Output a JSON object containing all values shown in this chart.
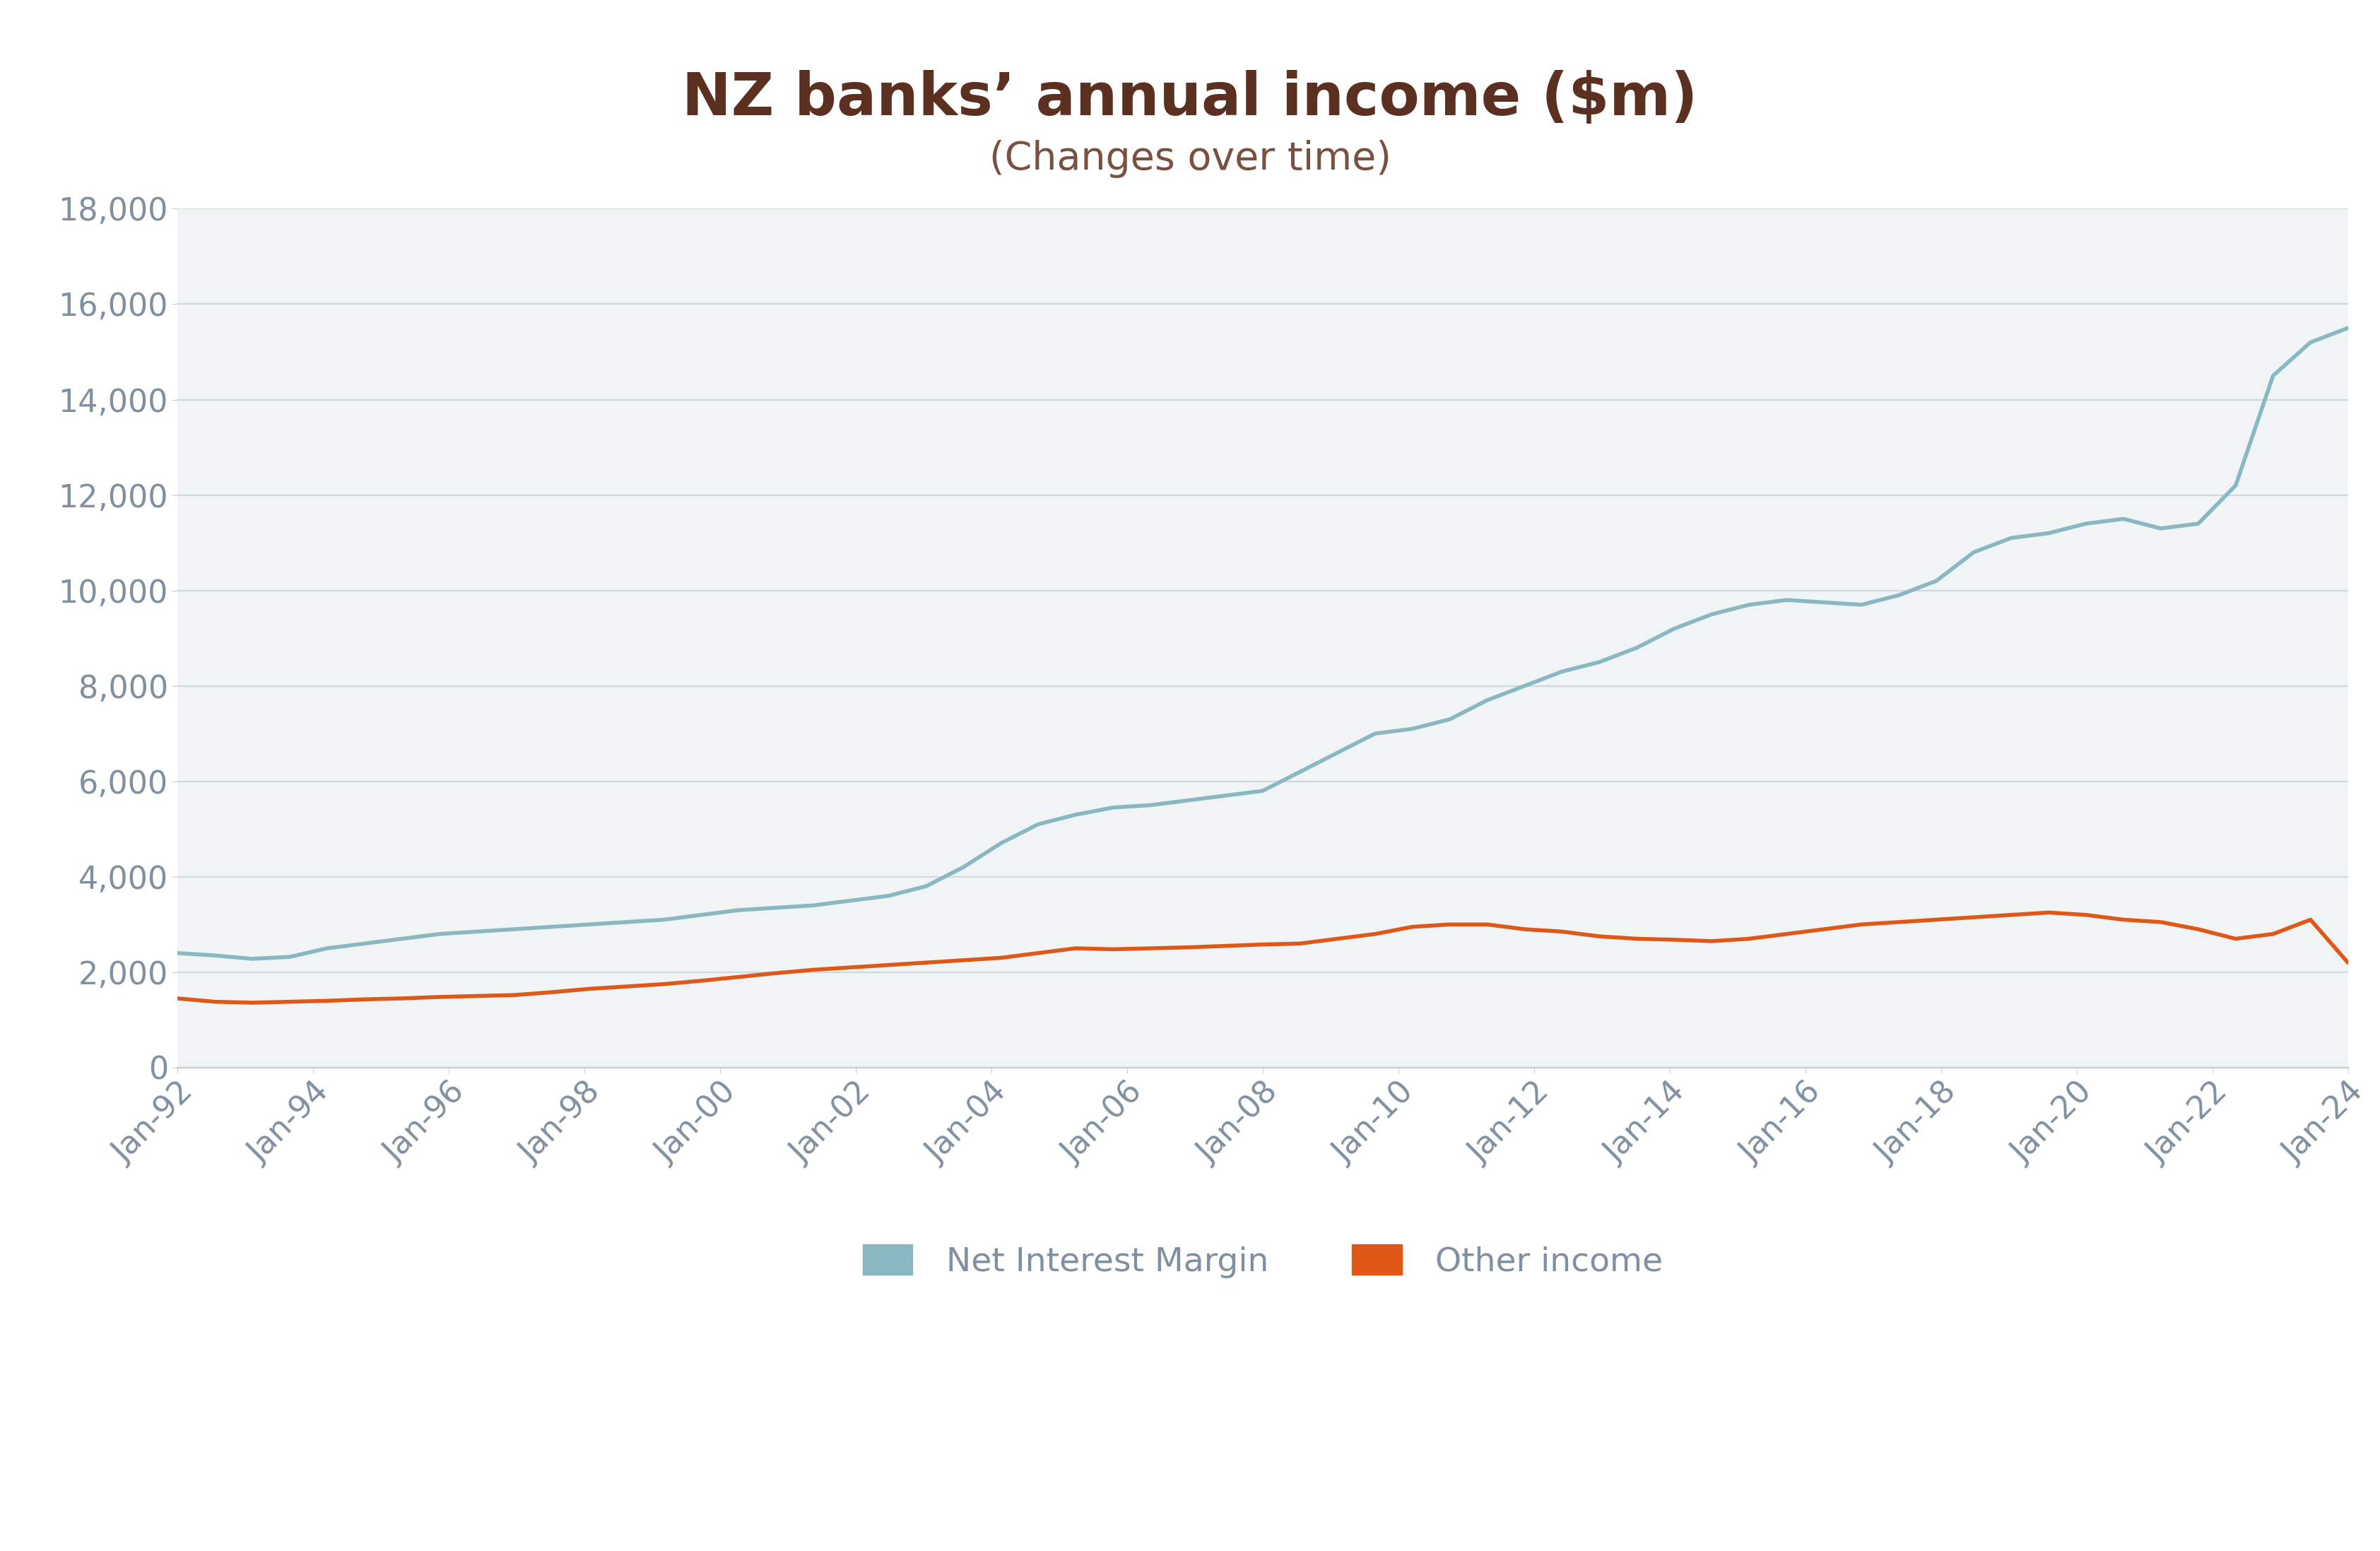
{
  "title": "NZ banks’ annual income ($m)",
  "subtitle": "(Changes over time)",
  "bg_color": "#ffffff",
  "plot_bg_color": "#f0f4f5",
  "title_color": "#5c3020",
  "subtitle_color": "#7a5040",
  "grid_color": "#d0d8dc",
  "tick_color": "#8090a0",
  "axis_color": "#c0ccd0",
  "line_nim_color": "#8ab8c2",
  "line_other_color": "#e05818",
  "legend_nim": "Net Interest Margin",
  "legend_other": "Other income",
  "ylim": [
    0,
    18000
  ],
  "yticks": [
    0,
    2000,
    4000,
    6000,
    8000,
    10000,
    12000,
    14000,
    16000,
    18000
  ],
  "xtick_labels": [
    "Jan-92",
    "Jan-94",
    "Jan-96",
    "Jan-98",
    "Jan-00",
    "Jan-02",
    "Jan-04",
    "Jan-06",
    "Jan-08",
    "Jan-10",
    "Jan-12",
    "Jan-14",
    "Jan-16",
    "Jan-18",
    "Jan-20",
    "Jan-22",
    "Jan-24"
  ],
  "nim_data": [
    2400,
    2350,
    2280,
    2320,
    2500,
    2600,
    2700,
    2800,
    2850,
    2900,
    2950,
    3000,
    3050,
    3100,
    3200,
    3300,
    3350,
    3400,
    3500,
    3600,
    3800,
    4200,
    4700,
    5100,
    5300,
    5450,
    5500,
    5600,
    5700,
    5800,
    6200,
    6600,
    7000,
    7100,
    7300,
    7700,
    8000,
    8300,
    8500,
    8800,
    9200,
    9500,
    9700,
    9800,
    9750,
    9700,
    9900,
    10200,
    10800,
    11100,
    11200,
    11400,
    11500,
    11300,
    11400,
    12200,
    14500,
    15200,
    15500
  ],
  "other_data": [
    1450,
    1380,
    1360,
    1380,
    1400,
    1430,
    1450,
    1480,
    1500,
    1520,
    1580,
    1650,
    1700,
    1750,
    1820,
    1900,
    1980,
    2050,
    2100,
    2150,
    2200,
    2250,
    2300,
    2400,
    2500,
    2480,
    2500,
    2520,
    2550,
    2580,
    2600,
    2700,
    2800,
    2950,
    3000,
    3000,
    2900,
    2850,
    2750,
    2700,
    2680,
    2650,
    2700,
    2800,
    2900,
    3000,
    3050,
    3100,
    3150,
    3200,
    3250,
    3200,
    3100,
    3050,
    2900,
    2700,
    2800,
    3100,
    2200
  ]
}
